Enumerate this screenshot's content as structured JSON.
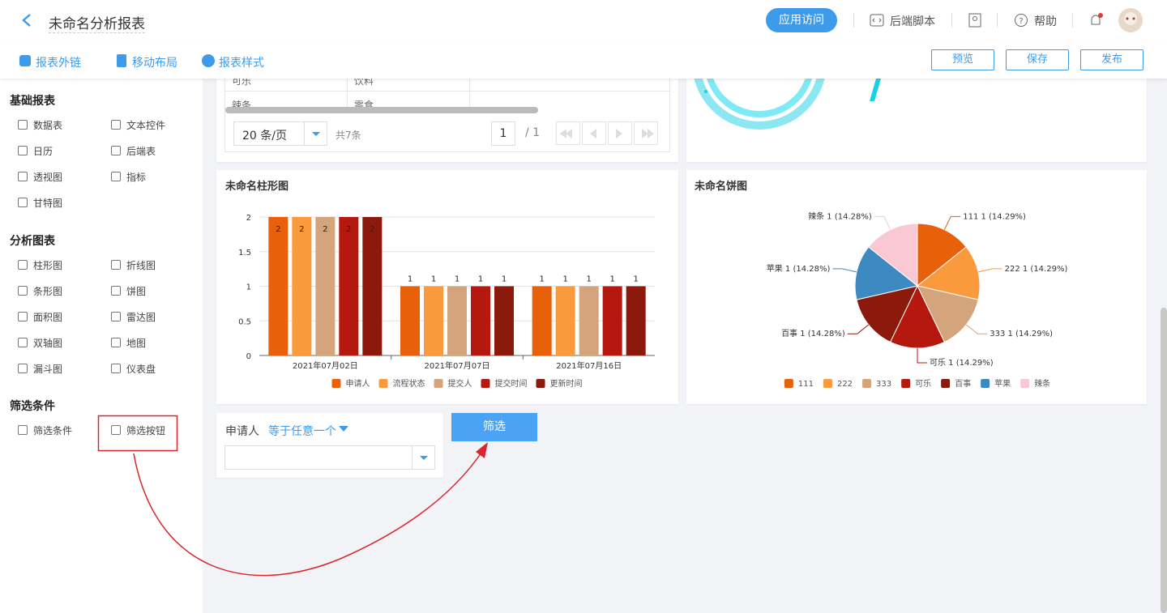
{
  "header": {
    "title": "未命名分析报表",
    "app_access": "应用访问",
    "backend_script": "后端脚本",
    "help": "帮助"
  },
  "toolbar": {
    "links": [
      "报表外链",
      "移动布局",
      "报表样式"
    ],
    "buttons": [
      "预览",
      "保存",
      "发布"
    ]
  },
  "sidebar": {
    "sections": [
      {
        "title": "基础报表",
        "items": [
          "数据表",
          "文本控件",
          "日历",
          "后端表",
          "透视图",
          "指标",
          "甘特图"
        ]
      },
      {
        "title": "分析图表",
        "items": [
          "柱形图",
          "折线图",
          "条形图",
          "饼图",
          "面积图",
          "雷达图",
          "双轴图",
          "地图",
          "漏斗图",
          "仪表盘"
        ]
      },
      {
        "title": "筛选条件",
        "items": [
          "筛选条件",
          "筛选按钮"
        ]
      }
    ]
  },
  "table": {
    "rows": [
      [
        "可乐",
        "饮料"
      ],
      [
        "辣条",
        "零食"
      ]
    ],
    "page_size": "20 条/页",
    "total": "共7条",
    "page": "1",
    "pages": "/ 1"
  },
  "bar_chart": {
    "type": "bar",
    "title": "未命名柱形图",
    "categories": [
      "2021年07月02日",
      "2021年07月07日",
      "2021年07月16日"
    ],
    "series": [
      {
        "name": "申请人",
        "color": "#e8600a",
        "values": [
          2,
          1,
          1
        ]
      },
      {
        "name": "流程状态",
        "color": "#fb9a3c",
        "values": [
          2,
          1,
          1
        ]
      },
      {
        "name": "提交人",
        "color": "#d4a47c",
        "values": [
          2,
          1,
          1
        ]
      },
      {
        "name": "提交时间",
        "color": "#b5180e",
        "values": [
          2,
          1,
          1
        ]
      },
      {
        "name": "更新时间",
        "color": "#8b1a0c",
        "values": [
          2,
          1,
          1
        ]
      }
    ],
    "ylim": [
      0,
      2
    ],
    "yticks": [
      0,
      0.5,
      1,
      1.5,
      2
    ],
    "grid": true
  },
  "pie_chart": {
    "type": "pie",
    "title": "未命名饼图",
    "categories": [
      "111",
      "222",
      "333",
      "可乐",
      "百事",
      "苹果",
      "辣条"
    ],
    "values": [
      1,
      1,
      1,
      1,
      1,
      1,
      1
    ],
    "value_labels": [
      "111 1 (14.29%)",
      "222 1 (14.29%)",
      "333 1 (14.29%)",
      "可乐 1 (14.29%)",
      "百事 1 (14.28%)",
      "苹果 1 (14.28%)",
      "辣条 1 (14.28%)"
    ],
    "colors": [
      "#e8600a",
      "#fb9a3c",
      "#d4a47c",
      "#b5180e",
      "#8b1a0c",
      "#3d8ac0",
      "#f9c8d4"
    ]
  },
  "filter": {
    "field": "申请人",
    "operator": "等于任意一个",
    "button": "筛选"
  }
}
